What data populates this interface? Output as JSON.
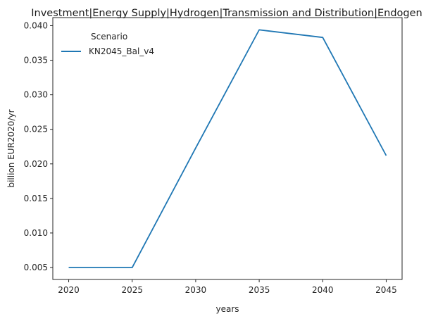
{
  "chart_data": {
    "type": "line",
    "title": "Investment|Energy Supply|Hydrogen|Transmission and Distribution|Endogen",
    "xlabel": "years",
    "ylabel": "billion EUR2020/yr",
    "x": [
      2020,
      2025,
      2030,
      2035,
      2040,
      2045
    ],
    "xticks": [
      "2020",
      "2025",
      "2030",
      "2035",
      "2040",
      "2045"
    ],
    "yticks": [
      "0.005",
      "0.010",
      "0.015",
      "0.020",
      "0.025",
      "0.030",
      "0.035",
      "0.040"
    ],
    "xlim": [
      2018.75,
      2046.25
    ],
    "ylim": [
      0.00327,
      0.04117
    ],
    "grid": false,
    "legend": {
      "title": "Scenario",
      "placement": "top-left"
    },
    "series": [
      {
        "name": "KN2045_Bal_v4",
        "color": "#1f77b4",
        "values": [
          0.005,
          0.005,
          0.0223,
          0.0394,
          0.0383,
          0.0212
        ]
      }
    ]
  }
}
